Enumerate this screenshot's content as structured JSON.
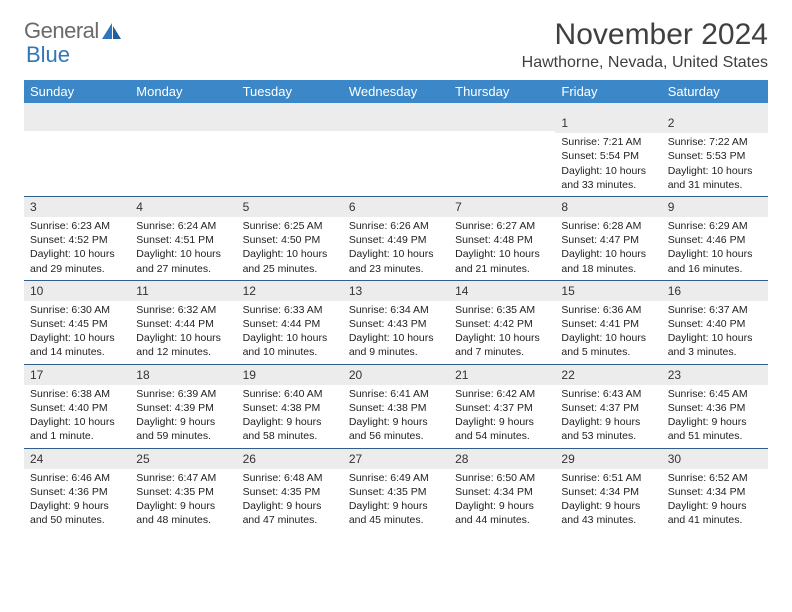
{
  "brand": {
    "part1": "General",
    "part2": "Blue"
  },
  "title": "November 2024",
  "location": "Hawthorne, Nevada, United States",
  "colors": {
    "header_bg": "#3b87c8",
    "week_divider": "#2f5f8a",
    "date_bar_bg": "#ececec",
    "text": "#222222",
    "title_text": "#404040",
    "brand_gray": "#6a6a6a",
    "brand_blue": "#2f77ba"
  },
  "weekdays": [
    "Sunday",
    "Monday",
    "Tuesday",
    "Wednesday",
    "Thursday",
    "Friday",
    "Saturday"
  ],
  "weeks": [
    [
      null,
      null,
      null,
      null,
      null,
      {
        "n": "1",
        "sunrise": "Sunrise: 7:21 AM",
        "sunset": "Sunset: 5:54 PM",
        "daylight": "Daylight: 10 hours and 33 minutes."
      },
      {
        "n": "2",
        "sunrise": "Sunrise: 7:22 AM",
        "sunset": "Sunset: 5:53 PM",
        "daylight": "Daylight: 10 hours and 31 minutes."
      }
    ],
    [
      {
        "n": "3",
        "sunrise": "Sunrise: 6:23 AM",
        "sunset": "Sunset: 4:52 PM",
        "daylight": "Daylight: 10 hours and 29 minutes."
      },
      {
        "n": "4",
        "sunrise": "Sunrise: 6:24 AM",
        "sunset": "Sunset: 4:51 PM",
        "daylight": "Daylight: 10 hours and 27 minutes."
      },
      {
        "n": "5",
        "sunrise": "Sunrise: 6:25 AM",
        "sunset": "Sunset: 4:50 PM",
        "daylight": "Daylight: 10 hours and 25 minutes."
      },
      {
        "n": "6",
        "sunrise": "Sunrise: 6:26 AM",
        "sunset": "Sunset: 4:49 PM",
        "daylight": "Daylight: 10 hours and 23 minutes."
      },
      {
        "n": "7",
        "sunrise": "Sunrise: 6:27 AM",
        "sunset": "Sunset: 4:48 PM",
        "daylight": "Daylight: 10 hours and 21 minutes."
      },
      {
        "n": "8",
        "sunrise": "Sunrise: 6:28 AM",
        "sunset": "Sunset: 4:47 PM",
        "daylight": "Daylight: 10 hours and 18 minutes."
      },
      {
        "n": "9",
        "sunrise": "Sunrise: 6:29 AM",
        "sunset": "Sunset: 4:46 PM",
        "daylight": "Daylight: 10 hours and 16 minutes."
      }
    ],
    [
      {
        "n": "10",
        "sunrise": "Sunrise: 6:30 AM",
        "sunset": "Sunset: 4:45 PM",
        "daylight": "Daylight: 10 hours and 14 minutes."
      },
      {
        "n": "11",
        "sunrise": "Sunrise: 6:32 AM",
        "sunset": "Sunset: 4:44 PM",
        "daylight": "Daylight: 10 hours and 12 minutes."
      },
      {
        "n": "12",
        "sunrise": "Sunrise: 6:33 AM",
        "sunset": "Sunset: 4:44 PM",
        "daylight": "Daylight: 10 hours and 10 minutes."
      },
      {
        "n": "13",
        "sunrise": "Sunrise: 6:34 AM",
        "sunset": "Sunset: 4:43 PM",
        "daylight": "Daylight: 10 hours and 9 minutes."
      },
      {
        "n": "14",
        "sunrise": "Sunrise: 6:35 AM",
        "sunset": "Sunset: 4:42 PM",
        "daylight": "Daylight: 10 hours and 7 minutes."
      },
      {
        "n": "15",
        "sunrise": "Sunrise: 6:36 AM",
        "sunset": "Sunset: 4:41 PM",
        "daylight": "Daylight: 10 hours and 5 minutes."
      },
      {
        "n": "16",
        "sunrise": "Sunrise: 6:37 AM",
        "sunset": "Sunset: 4:40 PM",
        "daylight": "Daylight: 10 hours and 3 minutes."
      }
    ],
    [
      {
        "n": "17",
        "sunrise": "Sunrise: 6:38 AM",
        "sunset": "Sunset: 4:40 PM",
        "daylight": "Daylight: 10 hours and 1 minute."
      },
      {
        "n": "18",
        "sunrise": "Sunrise: 6:39 AM",
        "sunset": "Sunset: 4:39 PM",
        "daylight": "Daylight: 9 hours and 59 minutes."
      },
      {
        "n": "19",
        "sunrise": "Sunrise: 6:40 AM",
        "sunset": "Sunset: 4:38 PM",
        "daylight": "Daylight: 9 hours and 58 minutes."
      },
      {
        "n": "20",
        "sunrise": "Sunrise: 6:41 AM",
        "sunset": "Sunset: 4:38 PM",
        "daylight": "Daylight: 9 hours and 56 minutes."
      },
      {
        "n": "21",
        "sunrise": "Sunrise: 6:42 AM",
        "sunset": "Sunset: 4:37 PM",
        "daylight": "Daylight: 9 hours and 54 minutes."
      },
      {
        "n": "22",
        "sunrise": "Sunrise: 6:43 AM",
        "sunset": "Sunset: 4:37 PM",
        "daylight": "Daylight: 9 hours and 53 minutes."
      },
      {
        "n": "23",
        "sunrise": "Sunrise: 6:45 AM",
        "sunset": "Sunset: 4:36 PM",
        "daylight": "Daylight: 9 hours and 51 minutes."
      }
    ],
    [
      {
        "n": "24",
        "sunrise": "Sunrise: 6:46 AM",
        "sunset": "Sunset: 4:36 PM",
        "daylight": "Daylight: 9 hours and 50 minutes."
      },
      {
        "n": "25",
        "sunrise": "Sunrise: 6:47 AM",
        "sunset": "Sunset: 4:35 PM",
        "daylight": "Daylight: 9 hours and 48 minutes."
      },
      {
        "n": "26",
        "sunrise": "Sunrise: 6:48 AM",
        "sunset": "Sunset: 4:35 PM",
        "daylight": "Daylight: 9 hours and 47 minutes."
      },
      {
        "n": "27",
        "sunrise": "Sunrise: 6:49 AM",
        "sunset": "Sunset: 4:35 PM",
        "daylight": "Daylight: 9 hours and 45 minutes."
      },
      {
        "n": "28",
        "sunrise": "Sunrise: 6:50 AM",
        "sunset": "Sunset: 4:34 PM",
        "daylight": "Daylight: 9 hours and 44 minutes."
      },
      {
        "n": "29",
        "sunrise": "Sunrise: 6:51 AM",
        "sunset": "Sunset: 4:34 PM",
        "daylight": "Daylight: 9 hours and 43 minutes."
      },
      {
        "n": "30",
        "sunrise": "Sunrise: 6:52 AM",
        "sunset": "Sunset: 4:34 PM",
        "daylight": "Daylight: 9 hours and 41 minutes."
      }
    ]
  ]
}
